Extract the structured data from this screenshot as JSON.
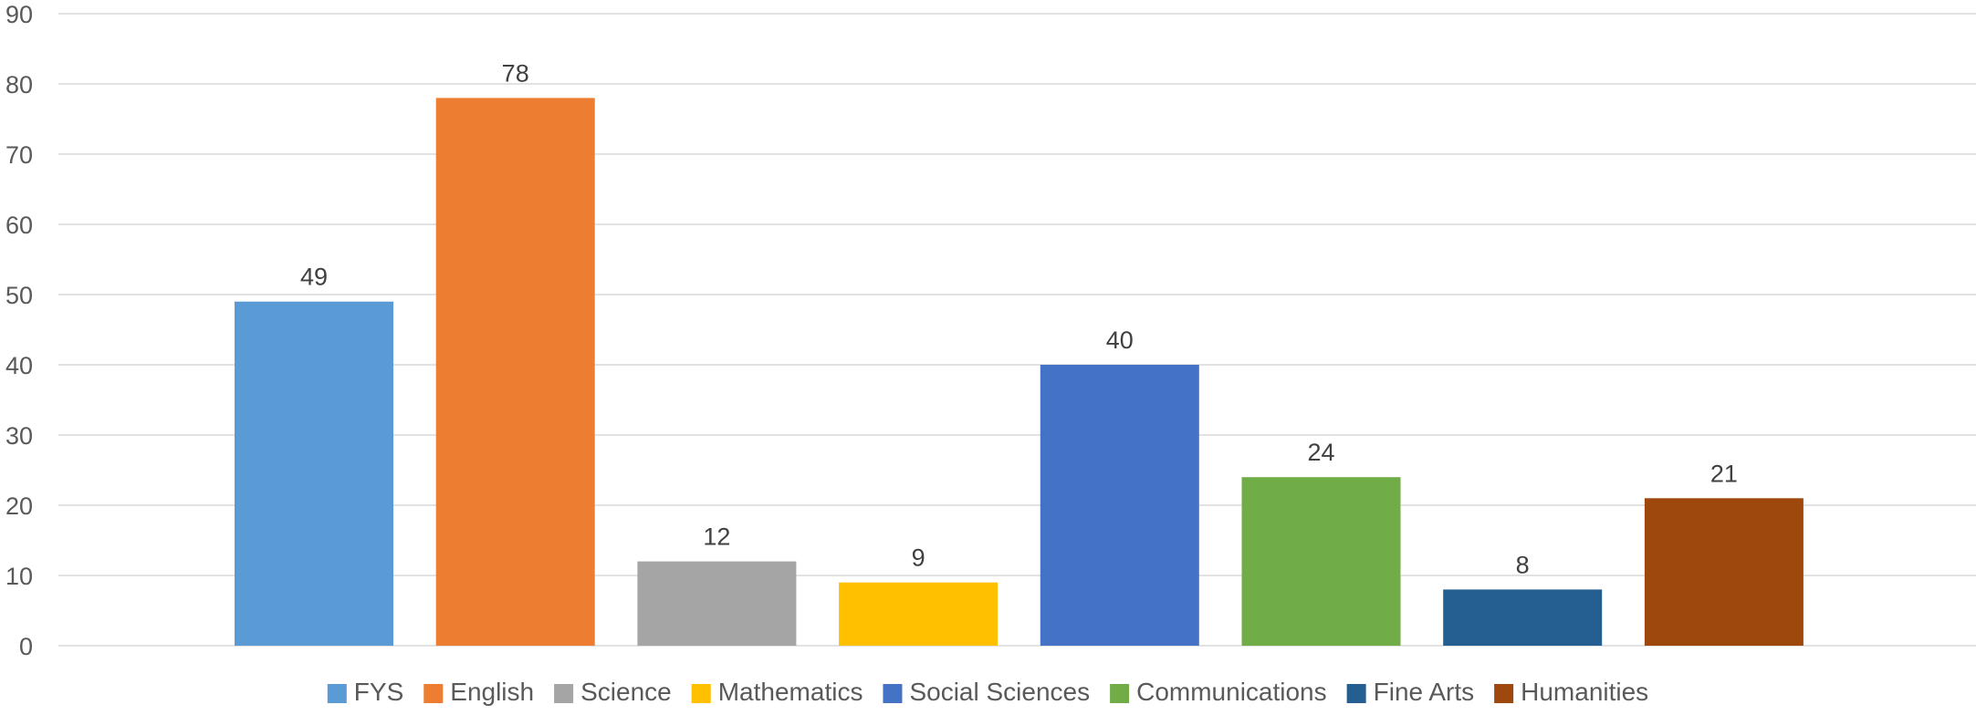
{
  "chart_data": {
    "type": "bar",
    "title": "",
    "xlabel": "",
    "ylabel": "",
    "categories": [
      "FYS",
      "English",
      "Science",
      "Mathematics",
      "Social Sciences",
      "Communications",
      "Fine Arts",
      "Humanities"
    ],
    "values": [
      49,
      78,
      12,
      9,
      40,
      24,
      8,
      21
    ],
    "colors": [
      "#5b9bd5",
      "#ed7d31",
      "#a5a5a5",
      "#ffc000",
      "#4472c4",
      "#70ad47",
      "#255e91",
      "#9e480e"
    ],
    "ylim": [
      0,
      90
    ],
    "yticks": [
      0,
      10,
      20,
      30,
      40,
      50,
      60,
      70,
      80,
      90
    ],
    "grid": true,
    "legend_position": "bottom",
    "data_labels": true
  }
}
